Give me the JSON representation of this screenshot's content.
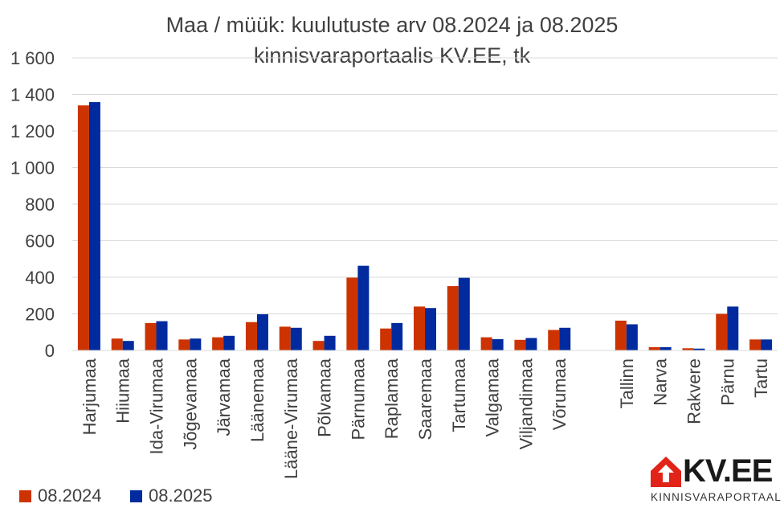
{
  "colors": {
    "series_2024": "#CC3300",
    "series_2025": "#002A9E",
    "grid": "#d9d9d9",
    "text": "#404040",
    "logo_red": "#E2231A"
  },
  "chart_data": {
    "type": "bar",
    "title": "Maa / müük: kuulutuste arv 08.2024 ja 08.2025",
    "subtitle": "kinnisvaraportaalis KV.EE, tk",
    "xlabel": "",
    "ylabel": "",
    "ylim": [
      0,
      1600
    ],
    "yticks": [
      "0",
      "200",
      "400",
      "600",
      "800",
      "1 000",
      "1 200",
      "1 400",
      "1 600"
    ],
    "grid": true,
    "legend_position": "bottom-left",
    "categories": [
      "Harjumaa",
      "Hiiumaa",
      "Ida-Virumaa",
      "Jõgevamaa",
      "Järvamaa",
      "Läänemaa",
      "Lääne-Virumaa",
      "Põlvamaa",
      "Pärnumaa",
      "Raplamaa",
      "Saaremaa",
      "Tartumaa",
      "Valgamaa",
      "Viljandimaa",
      "Võrumaa",
      "",
      "Tallinn",
      "Narva",
      "Rakvere",
      "Pärnu",
      "Tartu"
    ],
    "series": [
      {
        "name": "08.2024",
        "values": [
          1340,
          65,
          150,
          60,
          72,
          155,
          130,
          52,
          398,
          120,
          240,
          352,
          72,
          58,
          112,
          null,
          163,
          18,
          12,
          200,
          60
        ]
      },
      {
        "name": "08.2025",
        "values": [
          1358,
          52,
          160,
          65,
          80,
          198,
          124,
          80,
          463,
          150,
          232,
          397,
          62,
          68,
          124,
          null,
          143,
          18,
          10,
          240,
          60
        ]
      }
    ]
  },
  "logo": {
    "text": "KV.EE",
    "subtext": "KINNISVARAPORTAAL"
  }
}
